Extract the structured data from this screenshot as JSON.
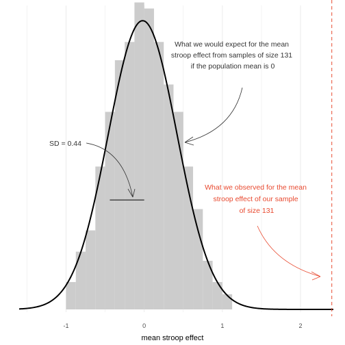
{
  "chart_data": {
    "type": "bar",
    "xlabel": "mean stroop effect",
    "xlim": [
      -1.6,
      2.42
    ],
    "ylim": [
      0,
      1.0
    ],
    "x_ticks": [
      -1,
      0,
      1,
      2
    ],
    "x_tick_labels": [
      "-1",
      "0",
      "1",
      "2"
    ],
    "grid": true,
    "histogram": {
      "bin_edges": [
        -1.075,
        -1.0,
        -0.75,
        -0.5,
        -0.25,
        0.0,
        0.25,
        0.5,
        0.75,
        1.0,
        1.1
      ],
      "bin_edges_fine": [
        -1.0,
        -0.875,
        -0.75,
        -0.625,
        -0.5,
        -0.375,
        -0.25,
        -0.125,
        0.0,
        0.125,
        0.25,
        0.375,
        0.5,
        0.625,
        0.75,
        0.875,
        1.0,
        1.125
      ],
      "densities_fine": [
        0.09,
        0.19,
        0.26,
        0.47,
        0.65,
        0.82,
        0.88,
        1.01,
        0.99,
        0.88,
        0.74,
        0.65,
        0.47,
        0.33,
        0.16,
        0.09,
        0.05
      ]
    },
    "normal_curve": {
      "mean": -0.02,
      "sd": 0.44,
      "peak": 0.95
    },
    "observed_value": 2.4,
    "observed_color": "#e8492f",
    "sd_segment": {
      "x0": -0.44,
      "x1": 0.0,
      "y": 0.36
    },
    "annotations": {
      "expected": [
        "What we would expect for the mean",
        "stroop effect from samples of size 131",
        "if the population mean is 0"
      ],
      "sd_label": "SD = 0.44",
      "observed": [
        "What we observed for the mean",
        "stroop effect of our sample",
        "of size 131"
      ]
    },
    "colors": {
      "bars": "#cccccc",
      "curve": "#000000",
      "grid": "#ebebeb",
      "annotation_text": "#333333"
    }
  }
}
